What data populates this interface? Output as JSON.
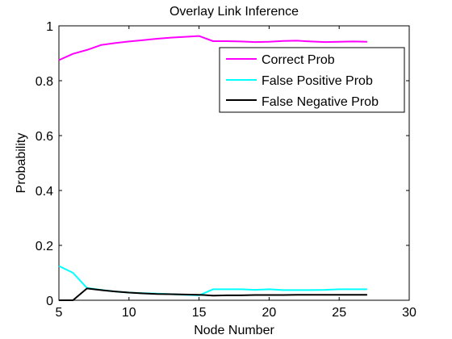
{
  "chart_data": {
    "type": "line",
    "title": "Overlay Link Inference",
    "xlabel": "Node Number",
    "ylabel": "Probability",
    "xlim": [
      5,
      30
    ],
    "ylim": [
      0,
      1
    ],
    "xticks": [
      "5",
      "10",
      "15",
      "20",
      "25",
      "30"
    ],
    "yticks": [
      "0",
      "0.2",
      "0.4",
      "0.6",
      "0.8",
      "1"
    ],
    "grid": false,
    "legend_position": "top-right",
    "x": [
      5,
      6,
      7,
      8,
      9,
      10,
      11,
      12,
      13,
      14,
      15,
      16,
      17,
      18,
      19,
      20,
      21,
      22,
      23,
      24,
      25,
      26,
      27
    ],
    "series": [
      {
        "name": "Correct Prob",
        "color": "#ff00ff",
        "values": [
          0.875,
          0.898,
          0.912,
          0.93,
          0.937,
          0.943,
          0.948,
          0.953,
          0.957,
          0.96,
          0.963,
          0.944,
          0.944,
          0.943,
          0.941,
          0.942,
          0.945,
          0.946,
          0.943,
          0.941,
          0.942,
          0.943,
          0.942
        ]
      },
      {
        "name": "False Positive Prob",
        "color": "#00ffff",
        "values": [
          0.125,
          0.1,
          0.045,
          0.038,
          0.032,
          0.028,
          0.026,
          0.024,
          0.022,
          0.02,
          0.018,
          0.04,
          0.04,
          0.04,
          0.038,
          0.04,
          0.037,
          0.037,
          0.037,
          0.038,
          0.04,
          0.04,
          0.04
        ]
      },
      {
        "name": "False Negative Prob",
        "color": "#000000",
        "values": [
          0.0,
          0.0,
          0.043,
          0.037,
          0.032,
          0.028,
          0.025,
          0.023,
          0.022,
          0.021,
          0.02,
          0.017,
          0.018,
          0.018,
          0.019,
          0.019,
          0.019,
          0.02,
          0.02,
          0.02,
          0.02,
          0.02,
          0.02
        ]
      }
    ]
  }
}
